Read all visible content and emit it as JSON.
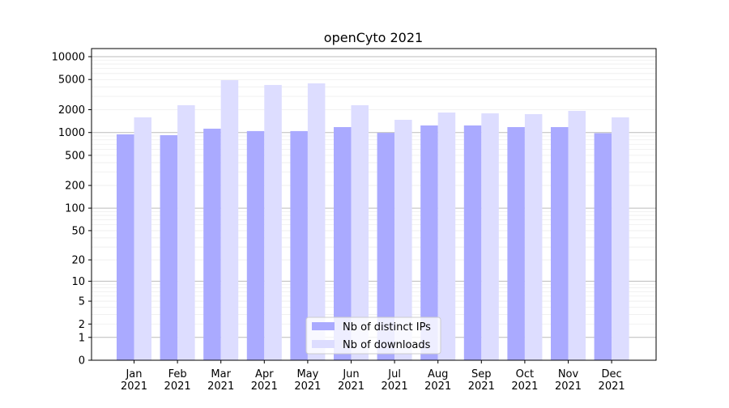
{
  "chart_data": {
    "type": "bar",
    "title": "openCyto 2021",
    "xlabel": "",
    "ylabel": "",
    "yscale": "log(1+y)",
    "ylim": [
      0,
      12800
    ],
    "yticks": [
      0,
      1,
      2,
      5,
      10,
      20,
      50,
      100,
      200,
      500,
      1000,
      2000,
      5000,
      10000
    ],
    "grid": true,
    "legend_position": "bottom-center",
    "categories": [
      "Jan\n2021",
      "Feb\n2021",
      "Mar\n2021",
      "Apr\n2021",
      "May\n2021",
      "Jun\n2021",
      "Jul\n2021",
      "Aug\n2021",
      "Sep\n2021",
      "Oct\n2021",
      "Nov\n2021",
      "Dec\n2021"
    ],
    "series": [
      {
        "name": "Nb of distinct IPs",
        "color": "#aaaaff",
        "values": [
          946,
          923,
          1124,
          1045,
          1045,
          1180,
          990,
          1240,
          1240,
          1180,
          1180,
          980
        ]
      },
      {
        "name": "Nb of downloads",
        "color": "#ddddff",
        "values": [
          1585,
          2290,
          4908,
          4235,
          4446,
          2290,
          1471,
          1836,
          1790,
          1749,
          1928,
          1585
        ]
      }
    ]
  }
}
